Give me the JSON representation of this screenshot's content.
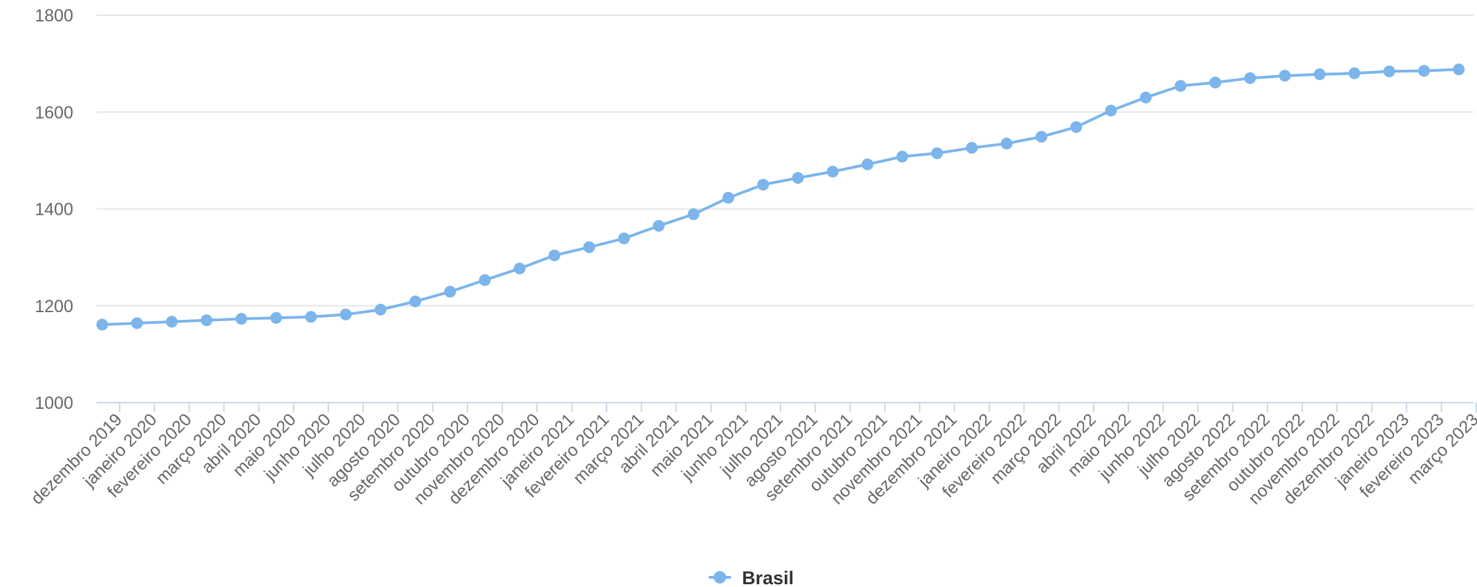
{
  "chart_data": {
    "type": "line",
    "title": "",
    "xlabel": "",
    "ylabel": "",
    "categories": [
      "dezembro 2019",
      "janeiro 2020",
      "fevereiro 2020",
      "março 2020",
      "abril 2020",
      "maio 2020",
      "junho 2020",
      "julho 2020",
      "agosto 2020",
      "setembro 2020",
      "outubro 2020",
      "novembro 2020",
      "dezembro 2020",
      "janeiro 2021",
      "fevereiro 2021",
      "março 2021",
      "abril 2021",
      "maio 2021",
      "junho 2021",
      "julho 2021",
      "agosto 2021",
      "setembro 2021",
      "outubro 2021",
      "novembro 2021",
      "dezembro 2021",
      "janeiro 2022",
      "fevereiro 2022",
      "março 2022",
      "abril 2022",
      "maio 2022",
      "junho 2022",
      "julho 2022",
      "agosto 2022",
      "setembro 2022",
      "outubro 2022",
      "novembro 2022",
      "dezembro 2022",
      "janeiro 2023",
      "fevereiro 2023",
      "março 2023"
    ],
    "series": [
      {
        "name": "Brasil",
        "color": "#7cb5ec",
        "values": [
          1161,
          1164,
          1167,
          1170,
          1173,
          1175,
          1177,
          1182,
          1192,
          1209,
          1229,
          1253,
          1277,
          1304,
          1321,
          1339,
          1365,
          1389,
          1423,
          1450,
          1464,
          1477,
          1492,
          1508,
          1515,
          1526,
          1535,
          1549,
          1569,
          1603,
          1630,
          1654,
          1661,
          1670,
          1675,
          1678,
          1680,
          1684,
          1685,
          1688
        ]
      }
    ],
    "ylim": [
      1000,
      1800
    ],
    "yticks": [
      1000,
      1200,
      1400,
      1600,
      1800
    ],
    "grid": true,
    "legend_position": "bottom-center"
  }
}
